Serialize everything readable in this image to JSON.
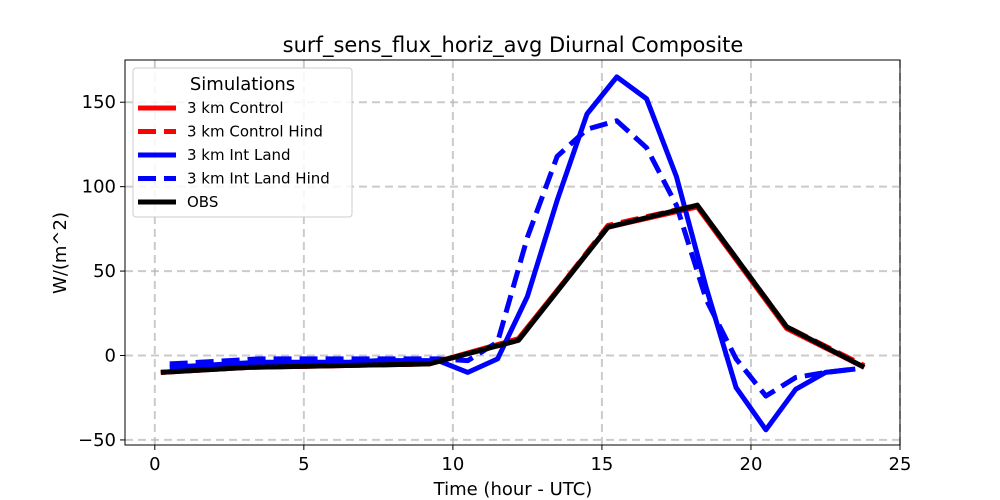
{
  "chart_data": {
    "type": "line",
    "title": "surf_sens_flux_horiz_avg Diurnal Composite",
    "xlabel": "Time (hour - UTC)",
    "ylabel": "W/(m^2)",
    "xlim": [
      -1,
      25
    ],
    "ylim": [
      -53,
      175
    ],
    "xticks": [
      0,
      5,
      10,
      15,
      20,
      25
    ],
    "yticks": [
      -50,
      0,
      50,
      100,
      150
    ],
    "grid": true,
    "legend": {
      "title": "Simulations",
      "placement": "top-left"
    },
    "series": [
      {
        "name": "3 km Control",
        "color": "#ff0000",
        "style": "solid",
        "x": [
          0.2,
          3.2,
          6.2,
          9.2,
          12.2,
          15.2,
          18.2,
          21.2,
          23.8
        ],
        "y": [
          -10,
          -7,
          -6,
          -5,
          10,
          76,
          88,
          16,
          -7
        ]
      },
      {
        "name": "3 km Control Hind",
        "color": "#ff0000",
        "style": "dashed",
        "x": [
          0.2,
          3.2,
          6.2,
          9.2,
          12.2,
          15.2,
          18.2,
          21.2,
          23.8
        ],
        "y": [
          -10,
          -7,
          -6,
          -5,
          9,
          77,
          89,
          17,
          -6
        ]
      },
      {
        "name": "3 km Int Land",
        "color": "#0000ff",
        "style": "solid",
        "x": [
          0.5,
          1.5,
          2.5,
          3.5,
          4.5,
          5.5,
          6.5,
          7.5,
          8.5,
          9.5,
          10.5,
          11.5,
          12.5,
          13.5,
          14.5,
          15.5,
          16.5,
          17.5,
          18.5,
          19.5,
          20.5,
          21.5,
          22.5,
          23.5
        ],
        "y": [
          -7,
          -6,
          -5,
          -4,
          -4,
          -4,
          -4,
          -3,
          -3,
          -3,
          -10,
          -2,
          35,
          92,
          143,
          165,
          152,
          106,
          40,
          -19,
          -44,
          -20,
          -10,
          -8
        ]
      },
      {
        "name": "3 km Int Land Hind",
        "color": "#0000ff",
        "style": "dashed",
        "x": [
          0.5,
          1.5,
          2.5,
          3.5,
          4.5,
          5.5,
          6.5,
          7.5,
          8.5,
          9.5,
          10.5,
          11.5,
          12.5,
          13.5,
          14.5,
          15.5,
          16.5,
          17.5,
          18.5,
          19.5,
          20.5,
          21.5,
          22.5,
          23.5
        ],
        "y": [
          -5,
          -4,
          -3,
          -2,
          -2,
          -2,
          -2,
          -2,
          -2,
          -2,
          -3,
          8,
          70,
          118,
          134,
          139,
          123,
          89,
          33,
          -2,
          -24,
          -13,
          -10,
          -8
        ]
      },
      {
        "name": "OBS",
        "color": "#000000",
        "style": "solid",
        "x": [
          0.2,
          3.2,
          6.2,
          9.2,
          12.2,
          15.2,
          18.2,
          21.2,
          23.8
        ],
        "y": [
          -10,
          -7,
          -6,
          -5,
          9,
          76,
          89,
          17,
          -7
        ]
      }
    ]
  }
}
